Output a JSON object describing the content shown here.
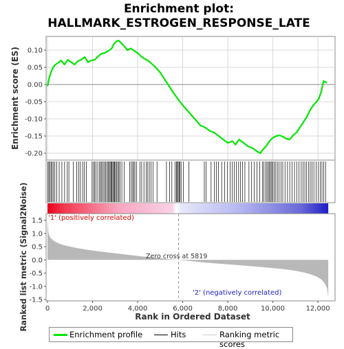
{
  "title_line1": "Enrichment plot:",
  "title_line2": "HALLMARK_ESTROGEN_RESPONSE_LATE",
  "colors": {
    "es_line": "#00e600",
    "hit": "#000000",
    "metric_fill": "#b8b8b8",
    "positive_text": "#e00000",
    "negative_text": "#2020cc",
    "zero_line": "#9a9a9a"
  },
  "chart_data": [
    {
      "type": "line",
      "name": "enrichment-profile",
      "ylabel": "Enrichment score (ES)",
      "xlim": [
        0,
        12700
      ],
      "ylim": [
        -0.22,
        0.14
      ],
      "yticks": [
        "0.10",
        "0.05",
        "0.00",
        "-0.05",
        "-0.10",
        "-0.15",
        "-0.20"
      ],
      "ytick_values": [
        0.1,
        0.05,
        0.0,
        -0.05,
        -0.1,
        -0.15,
        -0.2
      ],
      "grid": true,
      "points": {
        "x": [
          0,
          80,
          150,
          250,
          350,
          450,
          600,
          750,
          900,
          1050,
          1200,
          1350,
          1500,
          1650,
          1800,
          1950,
          2100,
          2250,
          2400,
          2550,
          2700,
          2850,
          2950,
          3050,
          3150,
          3250,
          3400,
          3550,
          3700,
          3850,
          4000,
          4150,
          4300,
          4450,
          4600,
          4800,
          5000,
          5200,
          5400,
          5600,
          5819,
          6000,
          6200,
          6400,
          6600,
          6800,
          7000,
          7200,
          7400,
          7600,
          7800,
          8000,
          8200,
          8350,
          8500,
          8700,
          8900,
          9100,
          9300,
          9450,
          9550,
          9700,
          9850,
          10000,
          10150,
          10300,
          10450,
          10600,
          10750,
          10900,
          11050,
          11200,
          11350,
          11500,
          11650,
          11800,
          11950,
          12050,
          12150,
          12250,
          12400
        ],
        "y": [
          -0.005,
          0.02,
          0.035,
          0.05,
          0.058,
          0.062,
          0.07,
          0.058,
          0.072,
          0.065,
          0.058,
          0.068,
          0.072,
          0.08,
          0.065,
          0.07,
          0.072,
          0.082,
          0.09,
          0.092,
          0.098,
          0.105,
          0.118,
          0.125,
          0.128,
          0.122,
          0.112,
          0.1,
          0.105,
          0.098,
          0.092,
          0.082,
          0.075,
          0.07,
          0.062,
          0.05,
          0.035,
          0.015,
          -0.005,
          -0.025,
          -0.045,
          -0.06,
          -0.075,
          -0.09,
          -0.105,
          -0.12,
          -0.125,
          -0.135,
          -0.14,
          -0.15,
          -0.16,
          -0.17,
          -0.165,
          -0.175,
          -0.16,
          -0.17,
          -0.18,
          -0.185,
          -0.195,
          -0.2,
          -0.19,
          -0.18,
          -0.165,
          -0.155,
          -0.15,
          -0.148,
          -0.152,
          -0.158,
          -0.16,
          -0.148,
          -0.14,
          -0.125,
          -0.11,
          -0.095,
          -0.075,
          -0.06,
          -0.05,
          -0.04,
          -0.02,
          0.01,
          0.005
        ]
      }
    },
    {
      "type": "scatter",
      "name": "hits",
      "xlim": [
        0,
        12700
      ],
      "hit_positions": [
        20,
        60,
        110,
        160,
        210,
        270,
        330,
        410,
        520,
        640,
        760,
        880,
        950,
        1150,
        1300,
        1380,
        1460,
        1560,
        1640,
        1720,
        1980,
        2040,
        2090,
        2150,
        2230,
        2310,
        2360,
        2410,
        2470,
        2530,
        2580,
        2640,
        2690,
        2730,
        2780,
        2820,
        2860,
        2900,
        2940,
        2980,
        3020,
        3070,
        3120,
        3170,
        3220,
        3300,
        3410,
        3650,
        3720,
        3780,
        3830,
        3880,
        3960,
        4100,
        4180,
        4280,
        4380,
        4450,
        4520,
        4600,
        4680,
        4860,
        5280,
        5420,
        5520,
        5660,
        5720,
        5760,
        5800,
        5840,
        5880,
        5930,
        6030,
        6280,
        6960,
        7040,
        7260,
        7410,
        7500,
        7590,
        7730,
        7860,
        7980,
        8110,
        8200,
        8290,
        8380,
        8480,
        8560,
        8650,
        8760,
        8940,
        9060,
        9180,
        9300,
        9420,
        9540,
        9600,
        9680,
        9740,
        9800,
        9850,
        9900,
        9950,
        10000,
        10060,
        10130,
        10200,
        10280,
        10360,
        10440,
        10540,
        10650,
        10750,
        10850,
        10960,
        11060,
        11160,
        11260,
        11340,
        11420,
        11500,
        11580,
        11660,
        11740,
        11820,
        11920,
        12020,
        12100,
        12180,
        12260,
        12340
      ]
    },
    {
      "type": "area",
      "name": "ranked-list-metric",
      "xlabel": "Rank in Ordered Dataset",
      "ylabel": "Ranked list metric (Signal2Noise)",
      "xlim": [
        0,
        12700
      ],
      "ylim": [
        -1.55,
        1.75
      ],
      "xticks": [
        "0",
        "2,000",
        "4,000",
        "6,000",
        "8,000",
        "10,000",
        "12,000"
      ],
      "xtick_values": [
        0,
        2000,
        4000,
        6000,
        8000,
        10000,
        12000
      ],
      "yticks": [
        "1.5",
        "1.0",
        "0.5",
        "0.0",
        "-0.5",
        "-1.0",
        "-1.5"
      ],
      "ytick_values": [
        1.5,
        1.0,
        0.5,
        0.0,
        -0.5,
        -1.0,
        -1.5
      ],
      "points": {
        "x": [
          0,
          15,
          40,
          80,
          150,
          250,
          400,
          600,
          900,
          1300,
          1800,
          2400,
          3000,
          3600,
          4200,
          4800,
          5400,
          5819,
          6400,
          7000,
          7600,
          8200,
          8800,
          9400,
          10000,
          10500,
          11000,
          11400,
          11700,
          11950,
          12150,
          12300,
          12400,
          12460
        ],
        "y": [
          1.62,
          1.3,
          1.05,
          0.92,
          0.82,
          0.74,
          0.66,
          0.59,
          0.52,
          0.45,
          0.38,
          0.31,
          0.25,
          0.19,
          0.13,
          0.08,
          0.03,
          0.0,
          -0.05,
          -0.1,
          -0.14,
          -0.18,
          -0.22,
          -0.26,
          -0.31,
          -0.35,
          -0.41,
          -0.48,
          -0.55,
          -0.63,
          -0.74,
          -0.88,
          -1.05,
          -1.4
        ]
      },
      "zero_cross_label": "Zero cross at 5819",
      "zero_cross": 5819,
      "positive_label": "'1' (positively correlated)",
      "negative_label": "'2' (negatively correlated)"
    }
  ],
  "legend": {
    "items": [
      {
        "label": "Enrichment profile",
        "color": "#00e600"
      },
      {
        "label": "Hits",
        "color": "#000000"
      },
      {
        "label": "Ranking metric scores",
        "color": "#b8b8b8"
      }
    ]
  }
}
